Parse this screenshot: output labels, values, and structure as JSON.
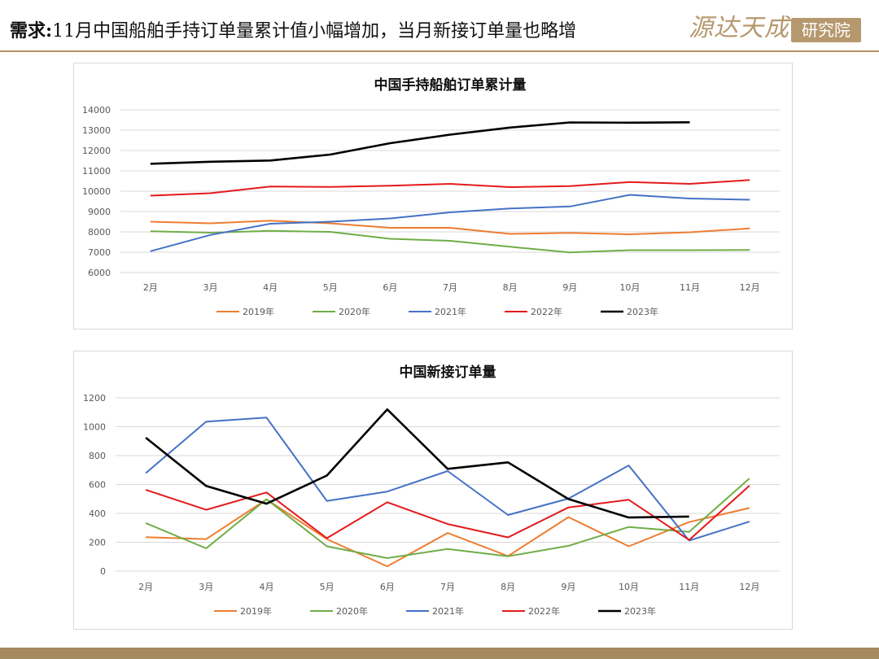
{
  "header": {
    "prefix": "需求:",
    "title": "11月中国船舶手持订单量累计值小幅增加，当月新接订单量也略增"
  },
  "logo": {
    "name": "源达天成",
    "suffix": "研究院",
    "color": "#b5986d"
  },
  "chart_data": [
    {
      "type": "line",
      "title": "中国手持船舶订单累计量",
      "categories": [
        "2月",
        "3月",
        "4月",
        "5月",
        "6月",
        "7月",
        "8月",
        "9月",
        "10月",
        "11月",
        "12月"
      ],
      "yticks": [
        "14000",
        "13000",
        "12000",
        "11000",
        "10000",
        "9000",
        "8000",
        "7000",
        "6000"
      ],
      "ylim": [
        6000,
        14000
      ],
      "grid": true,
      "legend_position": "bottom",
      "series": [
        {
          "name": "2019年",
          "color": "#ed7d31",
          "values": [
            8500,
            8420,
            8550,
            8420,
            8200,
            8200,
            7900,
            7950,
            7880,
            7980,
            8170
          ]
        },
        {
          "name": "2020年",
          "color": "#70ad47",
          "values": [
            8030,
            7960,
            8050,
            8000,
            7660,
            7560,
            7270,
            6990,
            7100,
            7100,
            7110
          ]
        },
        {
          "name": "2021年",
          "color": "#4472c4",
          "values": [
            7050,
            7850,
            8400,
            8500,
            8660,
            8960,
            9150,
            9250,
            9820,
            9640,
            9580
          ]
        },
        {
          "name": "2022年",
          "color": "#e31a1c",
          "values": [
            9780,
            9900,
            10230,
            10210,
            10270,
            10360,
            10200,
            10250,
            10450,
            10360,
            10550
          ]
        },
        {
          "name": "2023年",
          "color": "#000000",
          "values": [
            11350,
            11450,
            11510,
            11800,
            12360,
            12780,
            13130,
            13380,
            13370,
            13390,
            null
          ]
        }
      ]
    },
    {
      "type": "line",
      "title": "中国新接订单量",
      "categories": [
        "2月",
        "3月",
        "4月",
        "5月",
        "6月",
        "7月",
        "8月",
        "9月",
        "10月",
        "11月",
        "12月"
      ],
      "yticks": [
        "1200",
        "1000",
        "800",
        "600",
        "400",
        "200",
        "0"
      ],
      "ylim": [
        0,
        1200
      ],
      "grid": true,
      "legend_position": "bottom",
      "series": [
        {
          "name": "2019年",
          "color": "#ed7d31",
          "values": [
            235,
            222,
            497,
            222,
            33,
            264,
            104,
            374,
            172,
            340,
            437
          ]
        },
        {
          "name": "2020年",
          "color": "#70ad47",
          "values": [
            333,
            158,
            498,
            172,
            90,
            153,
            103,
            175,
            306,
            272,
            642
          ]
        },
        {
          "name": "2021年",
          "color": "#4472c4",
          "values": [
            679,
            1035,
            1063,
            486,
            551,
            693,
            389,
            502,
            732,
            212,
            343
          ]
        },
        {
          "name": "2022年",
          "color": "#e31a1c",
          "values": [
            563,
            425,
            545,
            228,
            477,
            326,
            234,
            441,
            494,
            216,
            592
          ]
        },
        {
          "name": "2023年",
          "color": "#000000",
          "values": [
            924,
            590,
            467,
            662,
            1120,
            708,
            753,
            499,
            371,
            378,
            null
          ]
        }
      ]
    }
  ]
}
